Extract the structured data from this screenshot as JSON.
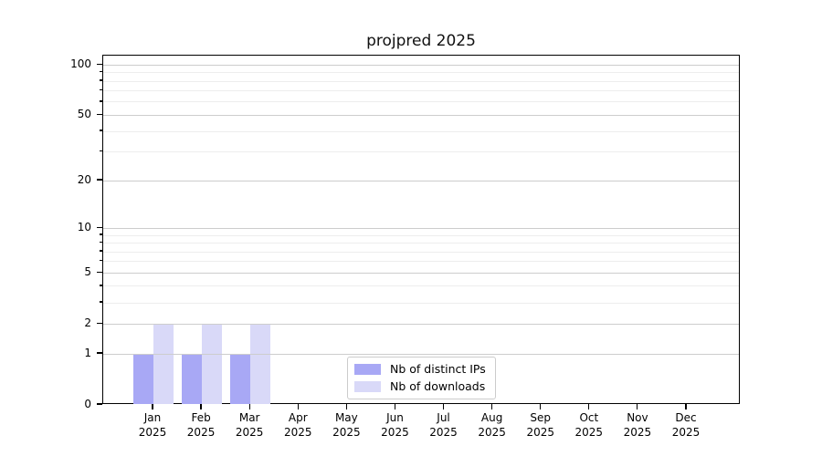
{
  "chart_data": {
    "type": "bar",
    "title": "projpred 2025",
    "categories": [
      "Jan 2025",
      "Feb 2025",
      "Mar 2025",
      "Apr 2025",
      "May 2025",
      "Jun 2025",
      "Jul 2025",
      "Aug 2025",
      "Sep 2025",
      "Oct 2025",
      "Nov 2025",
      "Dec 2025"
    ],
    "series": [
      {
        "name": "Nb of distinct IPs",
        "color": "#a8a8f5",
        "values": [
          1,
          1,
          1,
          0,
          0,
          0,
          0,
          0,
          0,
          0,
          0,
          0
        ]
      },
      {
        "name": "Nb of downloads",
        "color": "#d9d9f8",
        "values": [
          2,
          2,
          2,
          0,
          0,
          0,
          0,
          0,
          0,
          0,
          0,
          0
        ]
      }
    ],
    "xlabel": "",
    "ylabel": "",
    "yscale": "log1p",
    "ylim": [
      0,
      114
    ],
    "yticks_major": [
      0,
      1,
      2,
      5,
      10,
      20,
      50,
      100
    ],
    "yticks_minor": [
      3,
      4,
      6,
      7,
      8,
      9,
      30,
      40,
      60,
      70,
      80,
      90
    ],
    "grid": "horizontal",
    "legend_position": "lower-center-inside"
  },
  "colors": {
    "grid_major": "#cdcdcd",
    "grid_minor": "#ededed",
    "axis": "#000000",
    "background": "#ffffff"
  }
}
